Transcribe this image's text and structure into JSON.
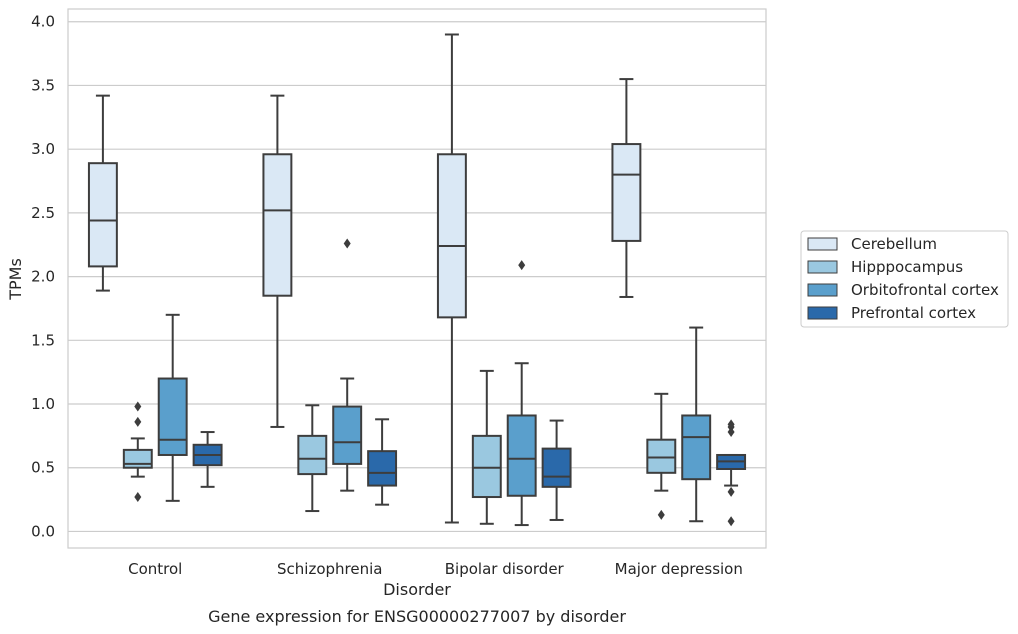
{
  "caption": "Gene expression for ENSG00000277007 by disorder",
  "chart_data": {
    "type": "box",
    "xlabel": "Disorder",
    "ylabel": "TPMs",
    "ylim": [
      -0.13,
      4.1
    ],
    "yticks": [
      "0.0",
      "0.5",
      "1.0",
      "1.5",
      "2.0",
      "2.5",
      "3.0",
      "3.5",
      "4.0"
    ],
    "grid": "horizontal",
    "legend_position": "right",
    "categories": [
      "Control",
      "Schizophrenia",
      "Bipolar disorder",
      "Major depression"
    ],
    "series": [
      {
        "name": "Cerebellum",
        "color": "#dae8f5",
        "boxes": [
          {
            "whislo": 1.89,
            "q1": 2.08,
            "med": 2.44,
            "q3": 2.89,
            "whishi": 3.42,
            "fliers": []
          },
          {
            "whislo": 0.82,
            "q1": 1.85,
            "med": 2.52,
            "q3": 2.96,
            "whishi": 3.42,
            "fliers": []
          },
          {
            "whislo": 0.07,
            "q1": 1.68,
            "med": 2.24,
            "q3": 2.96,
            "whishi": 3.9,
            "fliers": []
          },
          {
            "whislo": 1.84,
            "q1": 2.28,
            "med": 2.8,
            "q3": 3.04,
            "whishi": 3.55,
            "fliers": []
          }
        ]
      },
      {
        "name": "Hipppocampus",
        "color": "#9ac8e0",
        "boxes": [
          {
            "whislo": 0.43,
            "q1": 0.5,
            "med": 0.53,
            "q3": 0.64,
            "whishi": 0.73,
            "fliers": [
              0.98,
              0.86,
              0.27
            ]
          },
          {
            "whislo": 0.16,
            "q1": 0.45,
            "med": 0.57,
            "q3": 0.75,
            "whishi": 0.99,
            "fliers": []
          },
          {
            "whislo": 0.06,
            "q1": 0.27,
            "med": 0.5,
            "q3": 0.75,
            "whishi": 1.26,
            "fliers": []
          },
          {
            "whislo": 0.32,
            "q1": 0.46,
            "med": 0.58,
            "q3": 0.72,
            "whishi": 1.08,
            "fliers": [
              0.13
            ]
          }
        ]
      },
      {
        "name": "Orbitofrontal cortex",
        "color": "#5a9fcc",
        "boxes": [
          {
            "whislo": 0.24,
            "q1": 0.6,
            "med": 0.72,
            "q3": 1.2,
            "whishi": 1.7,
            "fliers": []
          },
          {
            "whislo": 0.32,
            "q1": 0.53,
            "med": 0.7,
            "q3": 0.98,
            "whishi": 1.2,
            "fliers": [
              2.26
            ]
          },
          {
            "whislo": 0.05,
            "q1": 0.28,
            "med": 0.57,
            "q3": 0.91,
            "whishi": 1.32,
            "fliers": [
              2.09
            ]
          },
          {
            "whislo": 0.08,
            "q1": 0.41,
            "med": 0.74,
            "q3": 0.91,
            "whishi": 1.6,
            "fliers": []
          }
        ]
      },
      {
        "name": "Prefrontal cortex",
        "color": "#2a69aa",
        "boxes": [
          {
            "whislo": 0.35,
            "q1": 0.52,
            "med": 0.6,
            "q3": 0.68,
            "whishi": 0.78,
            "fliers": []
          },
          {
            "whislo": 0.21,
            "q1": 0.36,
            "med": 0.46,
            "q3": 0.63,
            "whishi": 0.88,
            "fliers": []
          },
          {
            "whislo": 0.09,
            "q1": 0.35,
            "med": 0.43,
            "q3": 0.65,
            "whishi": 0.87,
            "fliers": []
          },
          {
            "whislo": 0.36,
            "q1": 0.49,
            "med": 0.55,
            "q3": 0.6,
            "whishi": 0.6,
            "fliers": [
              0.84,
              0.82,
              0.78,
              0.31,
              0.08
            ]
          }
        ]
      }
    ]
  }
}
